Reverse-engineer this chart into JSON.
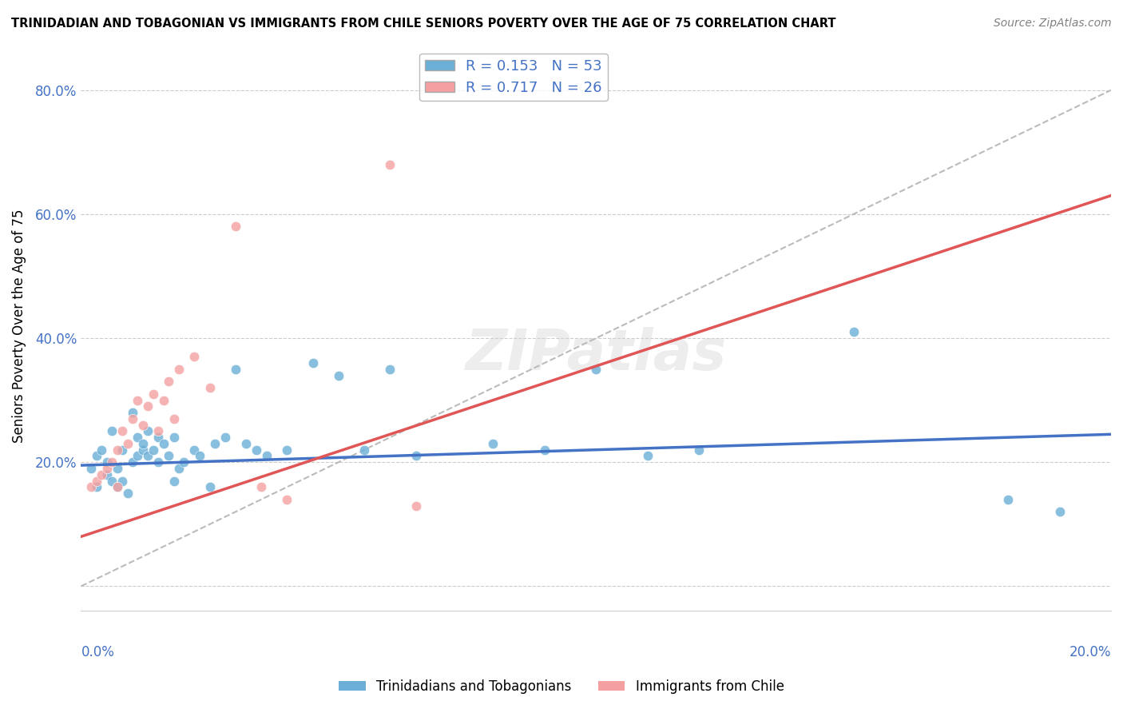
{
  "title": "TRINIDADIAN AND TOBAGONIAN VS IMMIGRANTS FROM CHILE SENIORS POVERTY OVER THE AGE OF 75 CORRELATION CHART",
  "source": "Source: ZipAtlas.com",
  "ylabel": "Seniors Poverty Over the Age of 75",
  "yticks": [
    0.0,
    0.2,
    0.4,
    0.6,
    0.8
  ],
  "ytick_labels": [
    "",
    "20.0%",
    "40.0%",
    "60.0%",
    "80.0%"
  ],
  "xticks": [
    0.0,
    0.04,
    0.08,
    0.12,
    0.16,
    0.2
  ],
  "xlim": [
    0.0,
    0.2
  ],
  "ylim": [
    -0.04,
    0.88
  ],
  "legend_entries": [
    {
      "label": "R = 0.153   N = 53",
      "color": "#6baed6"
    },
    {
      "label": "R = 0.717   N = 26",
      "color": "#f4a0a0"
    }
  ],
  "series1_color": "#6baed6",
  "series2_color": "#f4a0a0",
  "trendline1_color": "#4472c4",
  "trendline2_color": "#e05555",
  "refline_color": "#bbbbbb",
  "watermark": "ZIPatlas",
  "blue_scatter": [
    [
      0.002,
      0.19
    ],
    [
      0.003,
      0.21
    ],
    [
      0.003,
      0.16
    ],
    [
      0.004,
      0.22
    ],
    [
      0.005,
      0.18
    ],
    [
      0.005,
      0.2
    ],
    [
      0.006,
      0.17
    ],
    [
      0.006,
      0.25
    ],
    [
      0.007,
      0.16
    ],
    [
      0.007,
      0.19
    ],
    [
      0.008,
      0.22
    ],
    [
      0.008,
      0.17
    ],
    [
      0.009,
      0.15
    ],
    [
      0.01,
      0.2
    ],
    [
      0.01,
      0.28
    ],
    [
      0.011,
      0.24
    ],
    [
      0.011,
      0.21
    ],
    [
      0.012,
      0.22
    ],
    [
      0.012,
      0.23
    ],
    [
      0.013,
      0.25
    ],
    [
      0.013,
      0.21
    ],
    [
      0.014,
      0.22
    ],
    [
      0.015,
      0.2
    ],
    [
      0.015,
      0.24
    ],
    [
      0.016,
      0.23
    ],
    [
      0.017,
      0.21
    ],
    [
      0.018,
      0.17
    ],
    [
      0.018,
      0.24
    ],
    [
      0.019,
      0.19
    ],
    [
      0.02,
      0.2
    ],
    [
      0.022,
      0.22
    ],
    [
      0.023,
      0.21
    ],
    [
      0.025,
      0.16
    ],
    [
      0.026,
      0.23
    ],
    [
      0.028,
      0.24
    ],
    [
      0.03,
      0.35
    ],
    [
      0.032,
      0.23
    ],
    [
      0.034,
      0.22
    ],
    [
      0.036,
      0.21
    ],
    [
      0.04,
      0.22
    ],
    [
      0.045,
      0.36
    ],
    [
      0.05,
      0.34
    ],
    [
      0.055,
      0.22
    ],
    [
      0.06,
      0.35
    ],
    [
      0.065,
      0.21
    ],
    [
      0.08,
      0.23
    ],
    [
      0.09,
      0.22
    ],
    [
      0.1,
      0.35
    ],
    [
      0.11,
      0.21
    ],
    [
      0.12,
      0.22
    ],
    [
      0.15,
      0.41
    ],
    [
      0.18,
      0.14
    ],
    [
      0.19,
      0.12
    ]
  ],
  "pink_scatter": [
    [
      0.002,
      0.16
    ],
    [
      0.003,
      0.17
    ],
    [
      0.004,
      0.18
    ],
    [
      0.005,
      0.19
    ],
    [
      0.006,
      0.2
    ],
    [
      0.007,
      0.22
    ],
    [
      0.007,
      0.16
    ],
    [
      0.008,
      0.25
    ],
    [
      0.009,
      0.23
    ],
    [
      0.01,
      0.27
    ],
    [
      0.011,
      0.3
    ],
    [
      0.012,
      0.26
    ],
    [
      0.013,
      0.29
    ],
    [
      0.014,
      0.31
    ],
    [
      0.015,
      0.25
    ],
    [
      0.016,
      0.3
    ],
    [
      0.017,
      0.33
    ],
    [
      0.018,
      0.27
    ],
    [
      0.019,
      0.35
    ],
    [
      0.022,
      0.37
    ],
    [
      0.025,
      0.32
    ],
    [
      0.03,
      0.58
    ],
    [
      0.035,
      0.16
    ],
    [
      0.04,
      0.14
    ],
    [
      0.06,
      0.68
    ],
    [
      0.065,
      0.13
    ]
  ],
  "trendline1_x": [
    0.0,
    0.2
  ],
  "trendline1_y": [
    0.195,
    0.245
  ],
  "trendline2_x": [
    0.0,
    0.2
  ],
  "trendline2_y": [
    0.08,
    0.63
  ],
  "refline_x": [
    0.0,
    0.2
  ],
  "refline_y": [
    0.0,
    0.8
  ]
}
